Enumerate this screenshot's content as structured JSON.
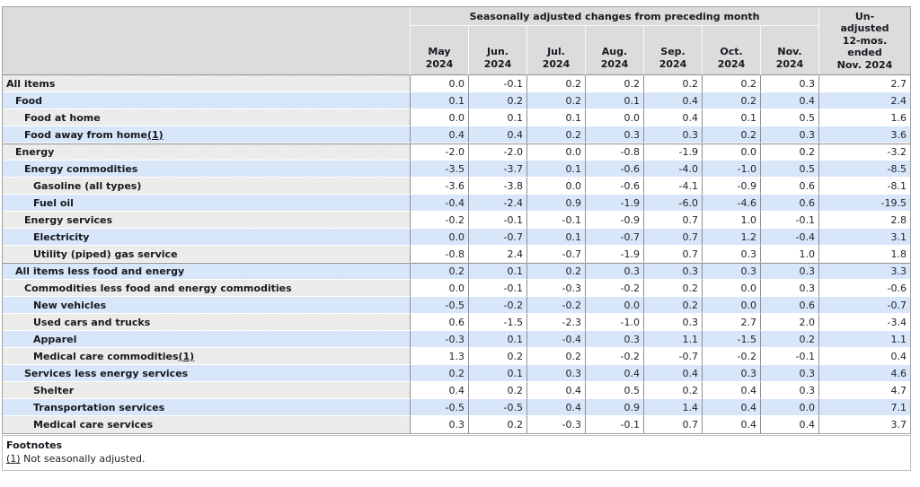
{
  "chart_data": {
    "type": "table",
    "title": "Seasonally adjusted changes from preceding month",
    "unadjusted_column_title": "Un-\nadjusted\n12-mos.\nended\nNov. 2024",
    "month_columns": [
      "May\n2024",
      "Jun.\n2024",
      "Jul.\n2024",
      "Aug.\n2024",
      "Sep.\n2024",
      "Oct.\n2024",
      "Nov.\n2024"
    ],
    "rows": [
      {
        "label": "All items",
        "indent": 0,
        "values": [
          "0.0",
          "-0.1",
          "0.2",
          "0.2",
          "0.2",
          "0.2",
          "0.3"
        ],
        "unadjusted_12mo": "2.7"
      },
      {
        "label": "Food",
        "indent": 1,
        "values": [
          "0.1",
          "0.2",
          "0.2",
          "0.1",
          "0.4",
          "0.2",
          "0.4"
        ],
        "unadjusted_12mo": "2.4"
      },
      {
        "label": "Food at home",
        "indent": 2,
        "values": [
          "0.0",
          "0.1",
          "0.1",
          "0.0",
          "0.4",
          "0.1",
          "0.5"
        ],
        "unadjusted_12mo": "1.6"
      },
      {
        "label": "Food away from home",
        "footnote_marker": "(1)",
        "indent": 2,
        "values": [
          "0.4",
          "0.4",
          "0.2",
          "0.3",
          "0.3",
          "0.2",
          "0.3"
        ],
        "unadjusted_12mo": "3.6"
      },
      {
        "label": "Energy",
        "indent": 1,
        "section_start": true,
        "values": [
          "-2.0",
          "-2.0",
          "0.0",
          "-0.8",
          "-1.9",
          "0.0",
          "0.2"
        ],
        "unadjusted_12mo": "-3.2"
      },
      {
        "label": "Energy commodities",
        "indent": 2,
        "values": [
          "-3.5",
          "-3.7",
          "0.1",
          "-0.6",
          "-4.0",
          "-1.0",
          "0.5"
        ],
        "unadjusted_12mo": "-8.5"
      },
      {
        "label": "Gasoline (all types)",
        "indent": 3,
        "values": [
          "-3.6",
          "-3.8",
          "0.0",
          "-0.6",
          "-4.1",
          "-0.9",
          "0.6"
        ],
        "unadjusted_12mo": "-8.1"
      },
      {
        "label": "Fuel oil",
        "indent": 3,
        "values": [
          "-0.4",
          "-2.4",
          "0.9",
          "-1.9",
          "-6.0",
          "-4.6",
          "0.6"
        ],
        "unadjusted_12mo": "-19.5"
      },
      {
        "label": "Energy services",
        "indent": 2,
        "values": [
          "-0.2",
          "-0.1",
          "-0.1",
          "-0.9",
          "0.7",
          "1.0",
          "-0.1"
        ],
        "unadjusted_12mo": "2.8"
      },
      {
        "label": "Electricity",
        "indent": 3,
        "values": [
          "0.0",
          "-0.7",
          "0.1",
          "-0.7",
          "0.7",
          "1.2",
          "-0.4"
        ],
        "unadjusted_12mo": "3.1"
      },
      {
        "label": "Utility (piped) gas service",
        "indent": 3,
        "values": [
          "-0.8",
          "2.4",
          "-0.7",
          "-1.9",
          "0.7",
          "0.3",
          "1.0"
        ],
        "unadjusted_12mo": "1.8"
      },
      {
        "label": "All items less food and energy",
        "indent": 1,
        "section_start": true,
        "values": [
          "0.2",
          "0.1",
          "0.2",
          "0.3",
          "0.3",
          "0.3",
          "0.3"
        ],
        "unadjusted_12mo": "3.3"
      },
      {
        "label": "Commodities less food and energy commodities",
        "indent": 2,
        "values": [
          "0.0",
          "-0.1",
          "-0.3",
          "-0.2",
          "0.2",
          "0.0",
          "0.3"
        ],
        "unadjusted_12mo": "-0.6"
      },
      {
        "label": "New vehicles",
        "indent": 3,
        "values": [
          "-0.5",
          "-0.2",
          "-0.2",
          "0.0",
          "0.2",
          "0.0",
          "0.6"
        ],
        "unadjusted_12mo": "-0.7"
      },
      {
        "label": "Used cars and trucks",
        "indent": 3,
        "values": [
          "0.6",
          "-1.5",
          "-2.3",
          "-1.0",
          "0.3",
          "2.7",
          "2.0"
        ],
        "unadjusted_12mo": "-3.4"
      },
      {
        "label": "Apparel",
        "indent": 3,
        "values": [
          "-0.3",
          "0.1",
          "-0.4",
          "0.3",
          "1.1",
          "-1.5",
          "0.2"
        ],
        "unadjusted_12mo": "1.1"
      },
      {
        "label": "Medical care commodities",
        "footnote_marker": "(1)",
        "indent": 3,
        "values": [
          "1.3",
          "0.2",
          "0.2",
          "-0.2",
          "-0.7",
          "-0.2",
          "-0.1"
        ],
        "unadjusted_12mo": "0.4"
      },
      {
        "label": "Services less energy services",
        "indent": 2,
        "values": [
          "0.2",
          "0.1",
          "0.3",
          "0.4",
          "0.4",
          "0.3",
          "0.3"
        ],
        "unadjusted_12mo": "4.6"
      },
      {
        "label": "Shelter",
        "indent": 3,
        "values": [
          "0.4",
          "0.2",
          "0.4",
          "0.5",
          "0.2",
          "0.4",
          "0.3"
        ],
        "unadjusted_12mo": "4.7"
      },
      {
        "label": "Transportation services",
        "indent": 3,
        "values": [
          "-0.5",
          "-0.5",
          "0.4",
          "0.9",
          "1.4",
          "0.4",
          "0.0"
        ],
        "unadjusted_12mo": "7.1"
      },
      {
        "label": "Medical care services",
        "indent": 3,
        "values": [
          "0.3",
          "0.2",
          "-0.3",
          "-0.1",
          "0.7",
          "0.4",
          "0.4"
        ],
        "unadjusted_12mo": "3.7"
      }
    ]
  },
  "footnotes": {
    "title": "Footnotes",
    "items": [
      {
        "marker": "(1)",
        "text": "Not seasonally adjusted."
      }
    ]
  },
  "colors": {
    "row_highlight_blue": "#d8e6f9",
    "row_plain_gray": "#f2f2f0",
    "header_bg": "#dcdcdc",
    "grid_line": "#8f8f8f"
  }
}
